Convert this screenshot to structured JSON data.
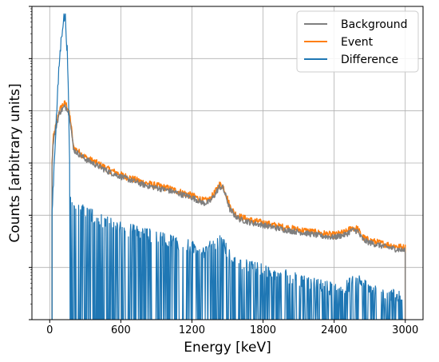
{
  "chart_data": {
    "type": "line",
    "title": "",
    "xlabel": "Energy [keV]",
    "ylabel": "Counts [arbitrary units]",
    "xlim": [
      -150,
      3150
    ],
    "x_ticks": [
      0,
      600,
      1200,
      1800,
      2400,
      3000
    ],
    "y_scale": "log",
    "y_tick_labels_shown": false,
    "grid": true,
    "legend_position": "top-right",
    "series": [
      {
        "name": "Background",
        "color": "#7f7f7f",
        "x": [
          20,
          30,
          50,
          80,
          110,
          130,
          150,
          175,
          200,
          300,
          400,
          500,
          600,
          800,
          1000,
          1200,
          1300,
          1350,
          1400,
          1430,
          1460,
          1490,
          1520,
          1560,
          1600,
          1700,
          1800,
          1900,
          2000,
          2100,
          2200,
          2300,
          2400,
          2500,
          2550,
          2600,
          2620,
          2650,
          2700,
          2800,
          2900,
          3000
        ],
        "y": [
          0.9,
          2.6,
          4.5,
          9,
          11,
          12,
          11,
          6.5,
          1.8,
          1.2,
          0.9,
          0.68,
          0.55,
          0.38,
          0.3,
          0.22,
          0.17,
          0.18,
          0.26,
          0.35,
          0.34,
          0.22,
          0.13,
          0.1,
          0.085,
          0.072,
          0.065,
          0.058,
          0.052,
          0.048,
          0.044,
          0.04,
          0.038,
          0.043,
          0.052,
          0.05,
          0.04,
          0.033,
          0.03,
          0.026,
          0.023,
          0.021
        ]
      },
      {
        "name": "Event",
        "color": "#ff7f0e",
        "x": [
          20,
          30,
          50,
          80,
          110,
          130,
          150,
          175,
          200,
          300,
          400,
          500,
          600,
          800,
          1000,
          1200,
          1300,
          1350,
          1400,
          1430,
          1460,
          1490,
          1520,
          1560,
          1600,
          1700,
          1800,
          1900,
          2000,
          2100,
          2200,
          2300,
          2400,
          2500,
          2550,
          2600,
          2620,
          2650,
          2700,
          2800,
          2900,
          3000
        ],
        "y": [
          1.0,
          3.0,
          5.0,
          10,
          13,
          14,
          12,
          7,
          2.0,
          1.3,
          1.0,
          0.75,
          0.6,
          0.42,
          0.33,
          0.24,
          0.19,
          0.2,
          0.29,
          0.39,
          0.37,
          0.25,
          0.15,
          0.11,
          0.095,
          0.08,
          0.072,
          0.064,
          0.058,
          0.053,
          0.049,
          0.045,
          0.042,
          0.048,
          0.058,
          0.055,
          0.045,
          0.037,
          0.033,
          0.029,
          0.026,
          0.024
        ]
      },
      {
        "name": "Difference",
        "color": "#1f77b4",
        "x": [
          20,
          30,
          50,
          80,
          110,
          130,
          150,
          175,
          200,
          300,
          400,
          500,
          600,
          800,
          1000,
          1200,
          1300,
          1400,
          1450,
          1500,
          1600,
          1800,
          2000,
          2200,
          2400,
          2500,
          2600,
          2700,
          2800,
          2900,
          3000
        ],
        "y": [
          0.1,
          0.4,
          4.0,
          80,
          500,
          700,
          120,
          0.25,
          0.2,
          0.12,
          0.09,
          0.07,
          0.06,
          0.045,
          0.035,
          0.025,
          0.02,
          0.03,
          0.035,
          0.02,
          0.012,
          0.009,
          0.007,
          0.005,
          0.004,
          0.0045,
          0.006,
          0.004,
          0.0035,
          0.003,
          0.003
        ]
      }
    ]
  }
}
